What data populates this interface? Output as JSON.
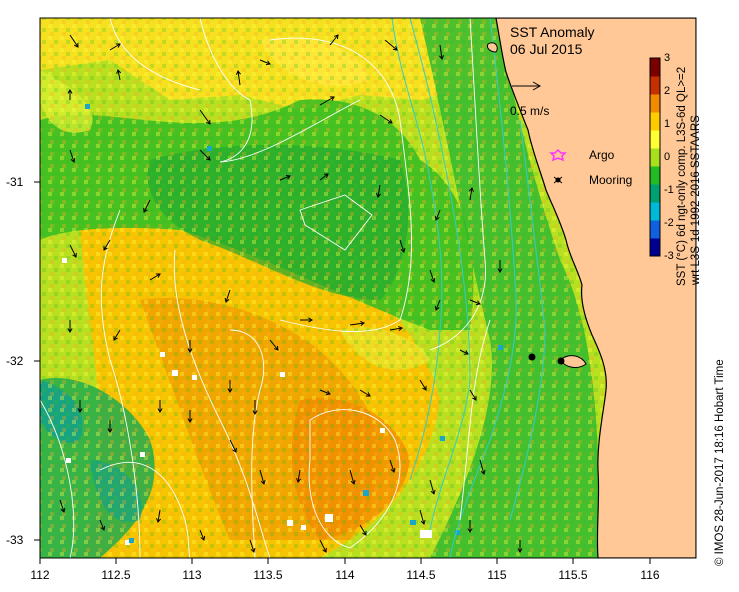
{
  "title": {
    "line1": "SST Anomaly",
    "line2": "06 Jul 2015"
  },
  "scale": {
    "label": "0.5 m/s",
    "speed_ms": 0.5
  },
  "legend": {
    "argo": "Argo",
    "mooring": "Mooring",
    "argo_color": "#ff33ff",
    "mooring_color": "#000000"
  },
  "colorbar": {
    "ticks": [
      "3",
      "2",
      "1",
      "0",
      "-1",
      "-2",
      "-3"
    ],
    "label1": "SST (°C) 6d ngt-only comp. L3S-6d QL>=2",
    "label2": "wrt L3S-1d 1992-2016 SSTAARS",
    "colors": [
      "#7a0000",
      "#c43000",
      "#f08a00",
      "#ffcc00",
      "#ffff33",
      "#a8e020",
      "#22bb22",
      "#00a070",
      "#00b8d8",
      "#1060e0",
      "#000090"
    ]
  },
  "credit": "© IMOS 28-Jun-2017 18:16 Hobart Time",
  "axes": {
    "x_ticks": [
      "112",
      "112.5",
      "113",
      "113.5",
      "114",
      "114.5",
      "115",
      "115.5",
      "116"
    ],
    "y_ticks": [
      "-31",
      "-32",
      "-33"
    ],
    "lon_range": [
      112,
      116.3
    ],
    "lat_range": [
      -33.1,
      -30.05
    ]
  },
  "colors": {
    "land": "#ffc896",
    "coast": "#000000",
    "contour": "#ffffff",
    "isobath": "#33cccc",
    "arrow": "#000000"
  },
  "markers": {
    "mooring": [
      {
        "lon": 115.23,
        "lat": -31.98
      },
      {
        "lon": 115.42,
        "lat": -32.0
      }
    ]
  }
}
